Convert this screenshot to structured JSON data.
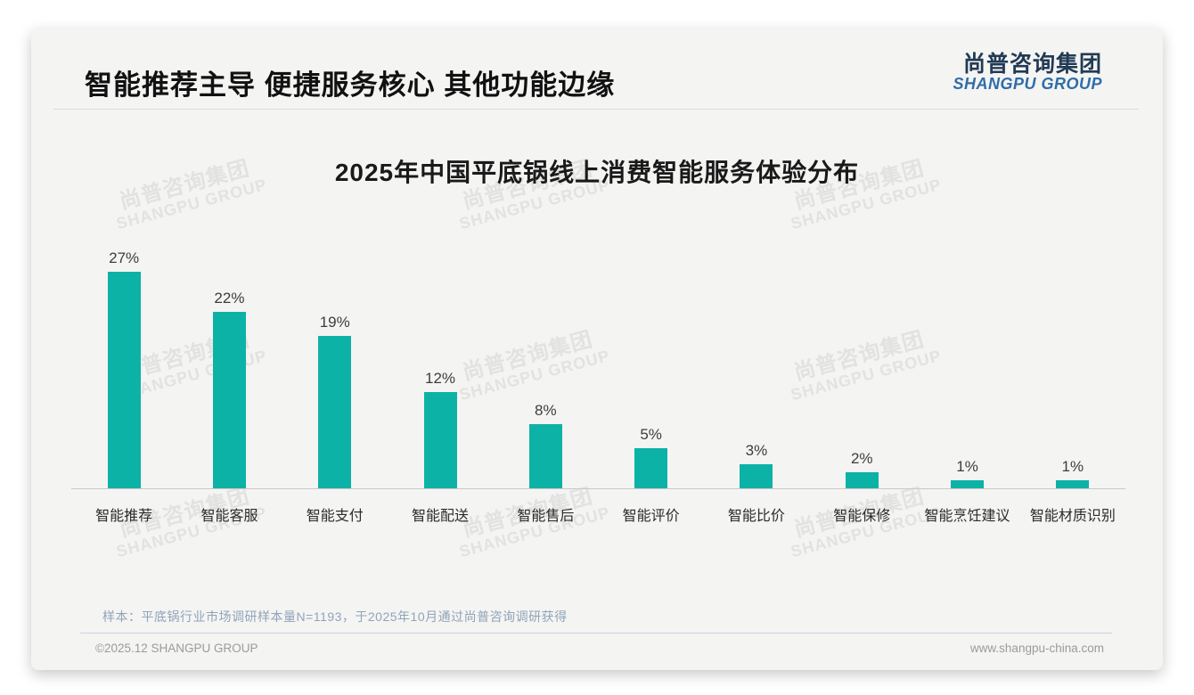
{
  "page": {
    "heading": "智能推荐主导 便捷服务核心 其他功能边缘",
    "logo": {
      "cn": "尚普咨询集团",
      "en": "SHANGPU GROUP"
    },
    "watermark": {
      "line1": "尚普咨询集团",
      "line2": "SHANGPU GROUP"
    },
    "note": "样本：平底锅行业市场调研样本量N=1193，于2025年10月通过尚普咨询调研获得",
    "footer": {
      "copyright": "©2025.12 SHANGPU GROUP",
      "website": "www.shangpu-china.com"
    }
  },
  "chart_data": {
    "type": "bar",
    "title": "2025年中国平底锅线上消费智能服务体验分布",
    "categories": [
      "智能推荐",
      "智能客服",
      "智能支付",
      "智能配送",
      "智能售后",
      "智能评价",
      "智能比价",
      "智能保修",
      "智能烹饪建议",
      "智能材质识别"
    ],
    "values": [
      27,
      22,
      19,
      12,
      8,
      5,
      3,
      2,
      1,
      1
    ],
    "unit": "%",
    "data_labels": [
      "27%",
      "22%",
      "19%",
      "12%",
      "8%",
      "5%",
      "3%",
      "2%",
      "1%",
      "1%"
    ],
    "bar_color": "#0db2a6",
    "ylim": [
      0,
      30
    ],
    "grid": false,
    "legend": false,
    "xlabel": "",
    "ylabel": ""
  }
}
